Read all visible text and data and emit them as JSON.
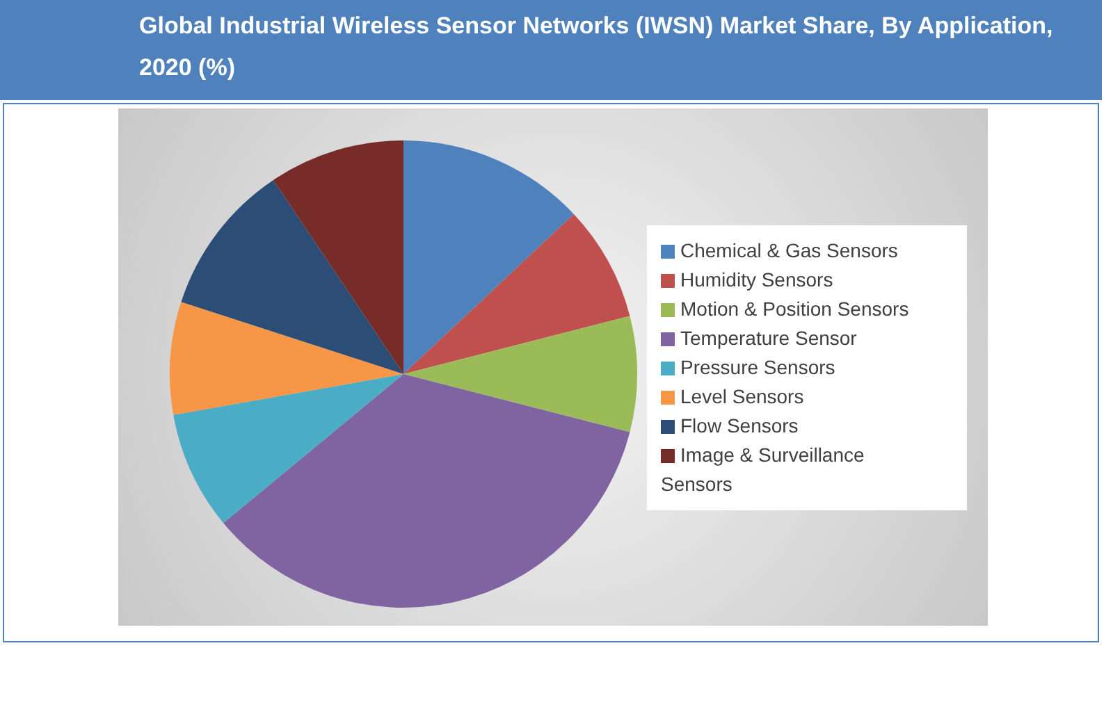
{
  "chart_data": {
    "type": "pie",
    "title": "Global Industrial Wireless Sensor Networks (IWSN) Market Share, By Application, 2020 (%)",
    "categories": [
      "Chemical & Gas Sensors",
      "Humidity Sensors",
      "Motion & Position Sensors",
      "Temperature Sensor",
      "Pressure Sensors",
      "Level Sensors",
      "Flow Sensors",
      "Image & Surveillance Sensors"
    ],
    "values": [
      13,
      8,
      8,
      35,
      8.2,
      7.8,
      10.6,
      9.4
    ],
    "colors": [
      "#4f81bd",
      "#c0504d",
      "#9bbb59",
      "#8064a2",
      "#4bacc6",
      "#f79646",
      "#2c4d75",
      "#772c2a"
    ],
    "legend": "right"
  }
}
